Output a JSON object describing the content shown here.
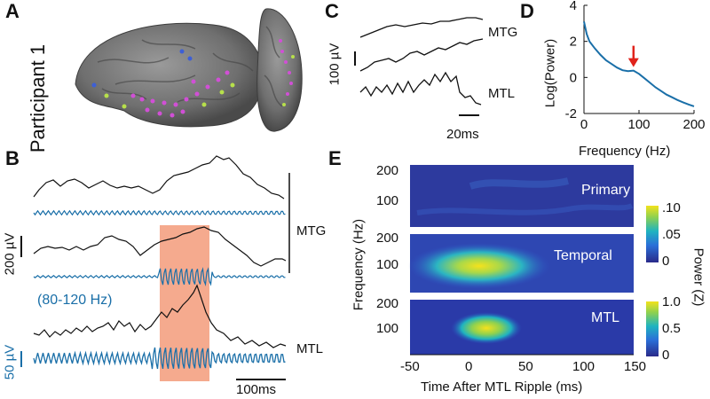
{
  "panel_labels": {
    "a": "A",
    "b": "B",
    "c": "C",
    "d": "D",
    "e": "E"
  },
  "panel_a": {
    "participant": "Participant 1"
  },
  "panel_b": {
    "top_region": "MTG",
    "bottom_region": "MTL",
    "scale_uv": "200 µV",
    "band": "(80-120 Hz)",
    "blue_scale": "50 µV",
    "time_scale": "100ms"
  },
  "panel_c": {
    "label_top": "MTG",
    "label_bottom": "MTL",
    "scale_uv": "100 µV",
    "time_scale": "20ms"
  },
  "chart_data": [
    {
      "type": "line",
      "id": "panel-d-spectrum",
      "title": "",
      "xlabel": "Frequency (Hz)",
      "ylabel": "Log(Power)",
      "xlim": [
        0,
        200
      ],
      "ylim": [
        -2,
        4
      ],
      "xticks": [
        "0",
        "100",
        "200"
      ],
      "yticks": [
        "-2",
        "0",
        "2",
        "4"
      ],
      "annotation": "peak arrow at ~90 Hz",
      "series": [
        {
          "name": "spectrum",
          "x": [
            0,
            5,
            10,
            20,
            30,
            40,
            50,
            60,
            70,
            80,
            90,
            100,
            110,
            120,
            130,
            140,
            150,
            160,
            170,
            180,
            190,
            200
          ],
          "y": [
            3.1,
            2.4,
            2.0,
            1.6,
            1.25,
            0.95,
            0.75,
            0.55,
            0.4,
            0.35,
            0.38,
            0.2,
            -0.05,
            -0.3,
            -0.55,
            -0.75,
            -0.95,
            -1.1,
            -1.25,
            -1.38,
            -1.5,
            -1.6
          ]
        }
      ]
    },
    {
      "type": "heatmap",
      "id": "panel-e-power",
      "xlabel": "Time After MTL Ripple (ms)",
      "ylabel": "Frequency (Hz)",
      "xlim": [
        -50,
        150
      ],
      "xticks": [
        "-50",
        "0",
        "50",
        "100",
        "150"
      ],
      "colorbar_label": "Power (Z)",
      "rows": [
        {
          "name": "Primary",
          "yticks": [
            "200",
            "100"
          ],
          "colorbar_ticks": [
            ".10",
            ".05",
            "0"
          ],
          "peak_time_ms": 10,
          "peak_freq_hz": 95,
          "peak_value": 0.01
        },
        {
          "name": "Temporal",
          "yticks": [
            "200",
            "100"
          ],
          "colorbar_ticks": [
            ".10",
            ".05",
            "0"
          ],
          "peak_time_ms": 5,
          "peak_freq_hz": 95,
          "peak_value": 0.09
        },
        {
          "name": "MTL",
          "yticks": [
            "200",
            "100"
          ],
          "colorbar_ticks": [
            "1.0",
            "0.5",
            "0"
          ],
          "peak_time_ms": 12,
          "peak_freq_hz": 100,
          "peak_value": 1.0
        }
      ]
    }
  ]
}
